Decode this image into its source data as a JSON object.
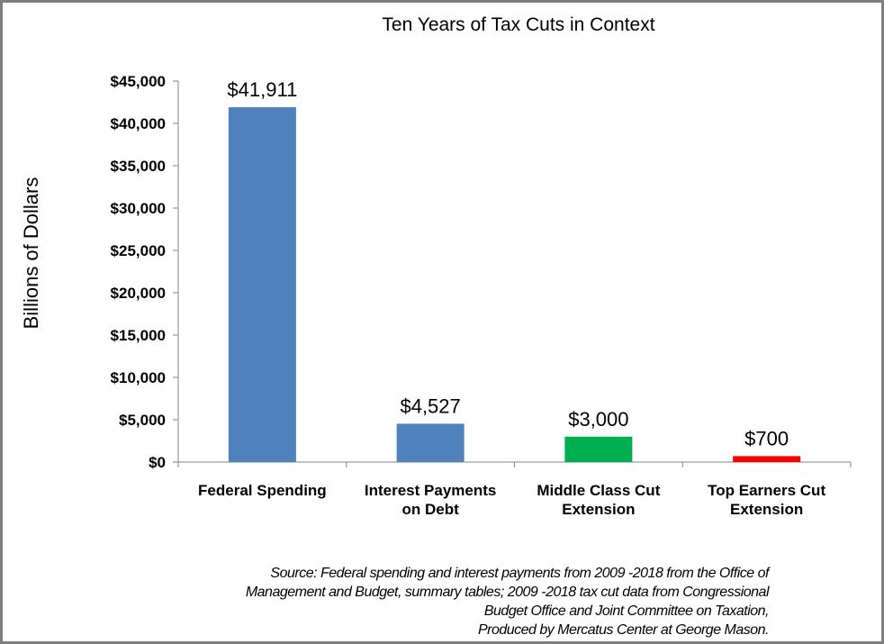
{
  "chart_data": {
    "type": "bar",
    "title": "Ten Years of Tax Cuts in Context",
    "xlabel": "",
    "ylabel": "Billions of Dollars",
    "ylim": [
      0,
      45000
    ],
    "yticks": [
      "$0",
      "$5,000",
      "$10,000",
      "$15,000",
      "$20,000",
      "$25,000",
      "$30,000",
      "$35,000",
      "$40,000",
      "$45,000"
    ],
    "categories": [
      [
        "Federal Spending"
      ],
      [
        "Interest Payments",
        "on Debt"
      ],
      [
        "Middle Class Cut",
        "Extension"
      ],
      [
        "Top Earners Cut",
        "Extension"
      ]
    ],
    "values": [
      41911,
      4527,
      3000,
      700
    ],
    "data_labels": [
      "$41,911",
      "$4,527",
      "$3,000",
      "$700"
    ],
    "colors": [
      "#4f81bd",
      "#4f81bd",
      "#00b050",
      "#ff0000"
    ],
    "grid": false,
    "legend": "none"
  },
  "source": [
    "Source: Federal spending and interest payments from 2009 -2018 from the Office of",
    "Management and Budget, summary tables; 2009 -2018 tax cut data from Congressional",
    "Budget Office and Joint Committee on Taxation,",
    "Produced by Mercatus Center at George Mason."
  ]
}
